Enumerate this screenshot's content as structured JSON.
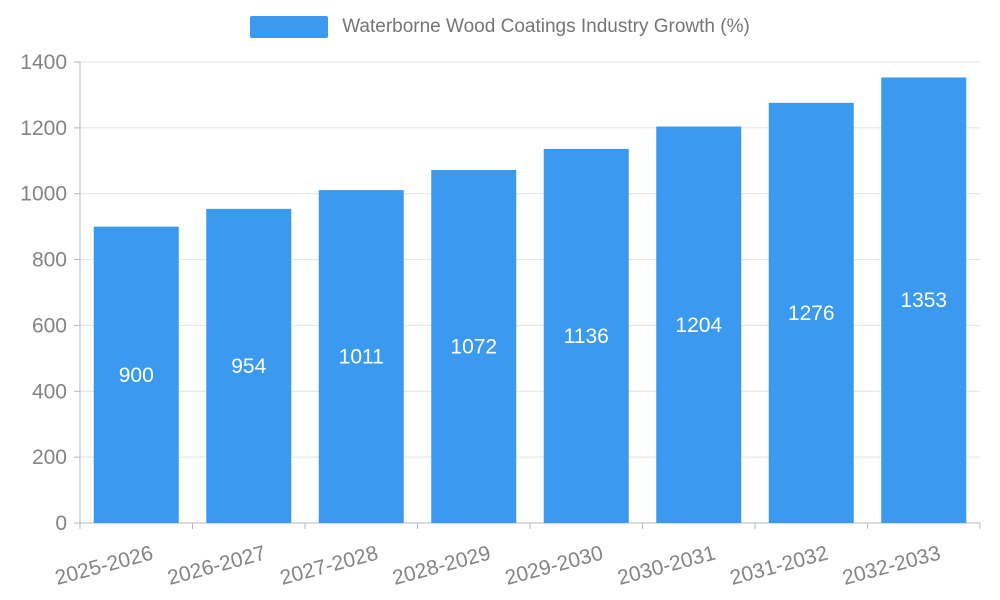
{
  "legend": {
    "label": "Waterborne Wood Coatings Industry Growth (%)"
  },
  "chart_data": {
    "type": "bar",
    "title": "Waterborne Wood Coatings Industry Growth (%)",
    "categories": [
      "2025-2026",
      "2026-2027",
      "2027-2028",
      "2028-2029",
      "2029-2030",
      "2030-2031",
      "2031-2032",
      "2032-2033"
    ],
    "values": [
      900,
      954,
      1011,
      1072,
      1136,
      1204,
      1276,
      1353
    ],
    "xlabel": "",
    "ylabel": "",
    "ylim": [
      0,
      1400
    ],
    "ytick_step": 200,
    "yticks": [
      0,
      200,
      400,
      600,
      800,
      1000,
      1200,
      1400
    ],
    "grid": true,
    "legend_position": "top",
    "bar_color": "#3B99F0",
    "bar_value_label_color": "#ffffff",
    "axis_label_color": "#848484",
    "axis_line_color": "#b9b9b9",
    "grid_color": "#e2e2e2",
    "x_label_rotation_deg": -15
  }
}
